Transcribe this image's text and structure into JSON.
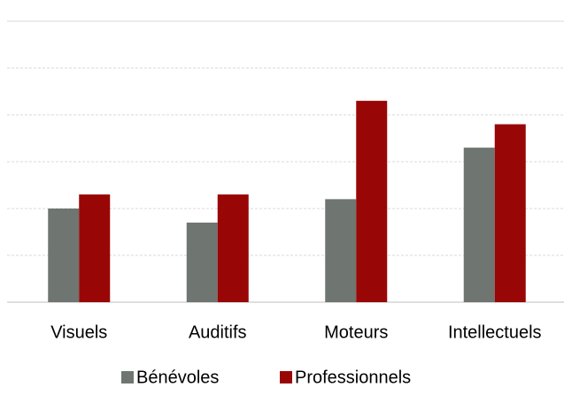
{
  "chart_data": {
    "type": "bar",
    "categories": [
      "Visuels",
      "Auditifs",
      "Moteurs",
      "Intellectuels"
    ],
    "series": [
      {
        "name": "Bénévoles",
        "color": "#6f7570",
        "values": [
          2.0,
          1.7,
          2.2,
          3.3
        ]
      },
      {
        "name": "Professionnels",
        "color": "#990606",
        "values": [
          2.3,
          2.3,
          4.3,
          3.8
        ]
      }
    ],
    "ylim": [
      0,
      6
    ],
    "yticks": [
      0,
      1,
      2,
      3,
      4,
      5,
      6
    ],
    "grid": true,
    "legend": "bottom"
  }
}
